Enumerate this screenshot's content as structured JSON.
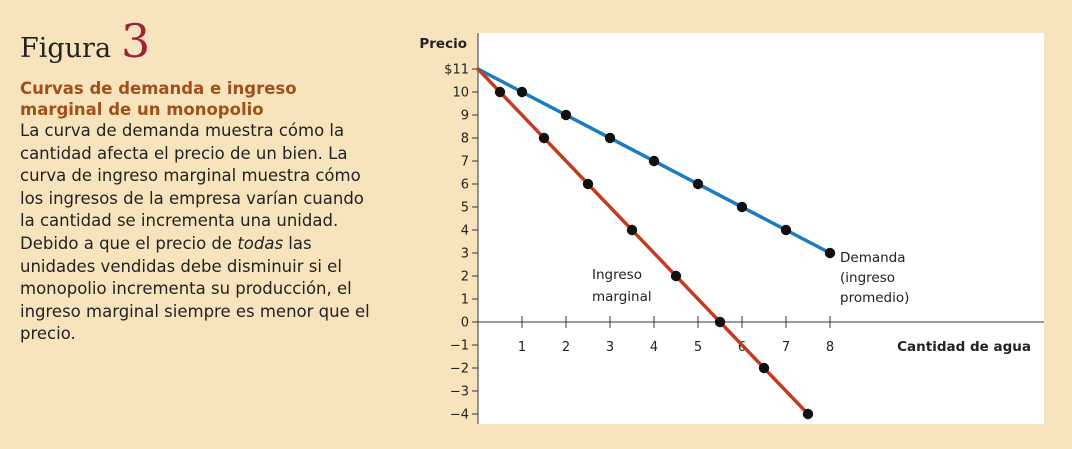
{
  "figure": {
    "label": "Figura",
    "number": "3",
    "title": "Curvas de demanda e ingreso marginal de un monopolio",
    "body_before": "La curva de demanda muestra cómo la cantidad afecta el precio de un bien. La curva de ingreso marginal muestra cómo los ingresos de la empresa varían cuando la cantidad se incrementa una unidad. Debido a que el precio de ",
    "body_em": "todas",
    "body_after": " las unidades vendidas debe disminuir si el monopolio incrementa su producción, el ingreso marginal siempre es menor que el precio."
  },
  "colors": {
    "demand": "#1a7cc1",
    "marginal_revenue": "#c63b20",
    "marker": "#111111",
    "panel_background": "#f8e4bc",
    "title": "#a1501c",
    "figure_number": "#a3203a"
  },
  "chart_data": {
    "type": "line",
    "xlabel": "Cantidad de agua",
    "ylabel": "Precio",
    "xlim": [
      0,
      8
    ],
    "ylim": [
      -4,
      11
    ],
    "x_ticks": [
      1,
      2,
      3,
      4,
      5,
      6,
      7,
      8
    ],
    "x_tick_labels": [
      "1",
      "2",
      "3",
      "4",
      "5",
      "6",
      "7",
      "8"
    ],
    "y_ticks": [
      11,
      10,
      9,
      8,
      7,
      6,
      5,
      4,
      3,
      2,
      1,
      0,
      -1,
      -2,
      -3,
      -4
    ],
    "y_tick_labels": [
      "$11",
      "10",
      "9",
      "8",
      "7",
      "6",
      "5",
      "4",
      "3",
      "2",
      "1",
      "0",
      "−1",
      "−2",
      "−3",
      "−4"
    ],
    "grid": false,
    "series": [
      {
        "name": "Demanda (ingreso promedio)",
        "label_lines": [
          "Demanda",
          "(ingreso",
          "promedio)"
        ],
        "line": {
          "x": [
            0,
            8
          ],
          "y": [
            11,
            3
          ]
        },
        "points": {
          "x": [
            1,
            2,
            3,
            4,
            5,
            6,
            7,
            8
          ],
          "y": [
            10,
            9,
            8,
            7,
            6,
            5,
            4,
            3
          ]
        }
      },
      {
        "name": "Ingreso marginal",
        "label_lines": [
          "Ingreso",
          "marginal"
        ],
        "line": {
          "x": [
            0,
            7.5
          ],
          "y": [
            11,
            -4
          ]
        },
        "points": {
          "x": [
            0.5,
            1.5,
            2.5,
            3.5,
            4.5,
            5.5,
            6.5,
            7.5
          ],
          "y": [
            10,
            8,
            6,
            4,
            2,
            0,
            -2,
            -4
          ]
        }
      }
    ]
  }
}
